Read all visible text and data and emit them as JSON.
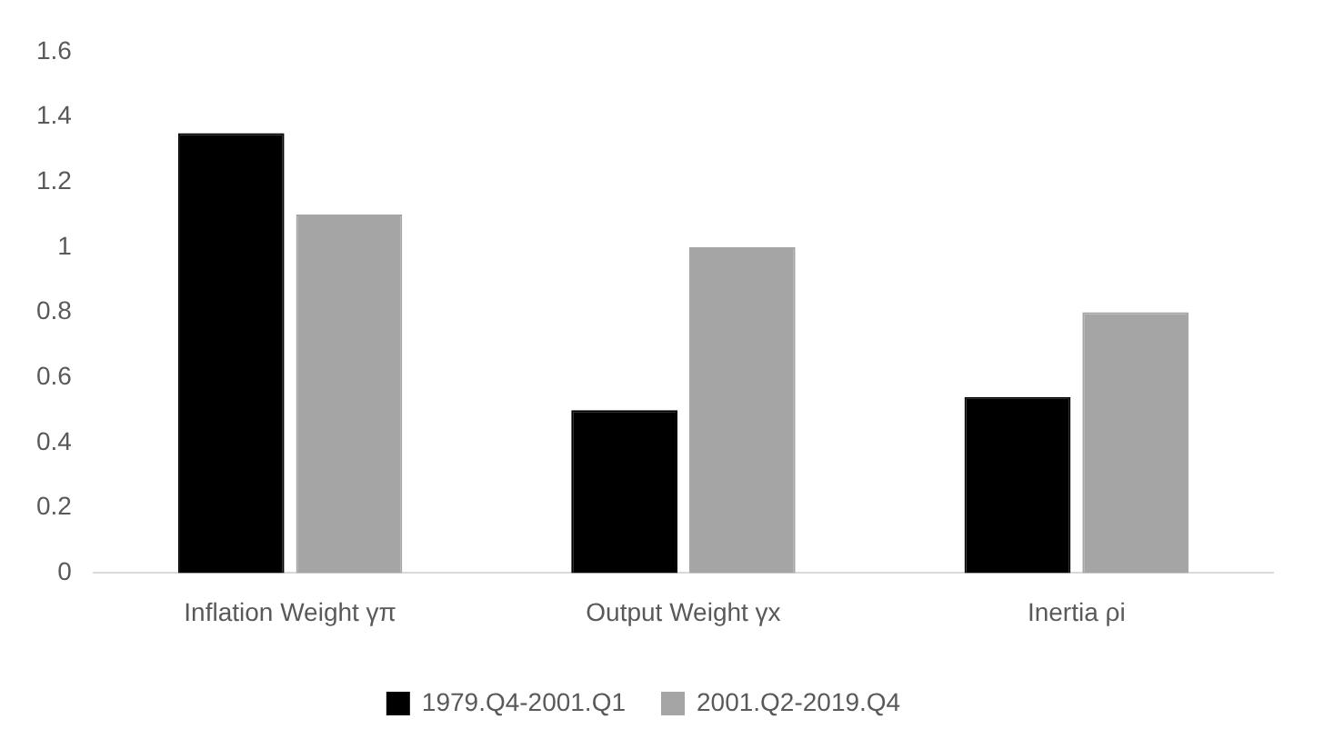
{
  "chart_data": {
    "type": "bar",
    "categories": [
      "Inflation Weight γπ",
      "Output Weight γx",
      "Inertia ρi"
    ],
    "series": [
      {
        "name": "1979.Q4-2001.Q1",
        "color": "#000000",
        "values": [
          1.35,
          0.5,
          0.54
        ]
      },
      {
        "name": "2001.Q2-2019.Q4",
        "color": "#a5a5a5",
        "values": [
          1.1,
          1.0,
          0.8
        ]
      }
    ],
    "ylim": [
      0,
      1.6
    ],
    "yticks": [
      0,
      0.2,
      0.4,
      0.6,
      0.8,
      1,
      1.2,
      1.4,
      1.6
    ],
    "grid": false,
    "legend": "bottom"
  }
}
